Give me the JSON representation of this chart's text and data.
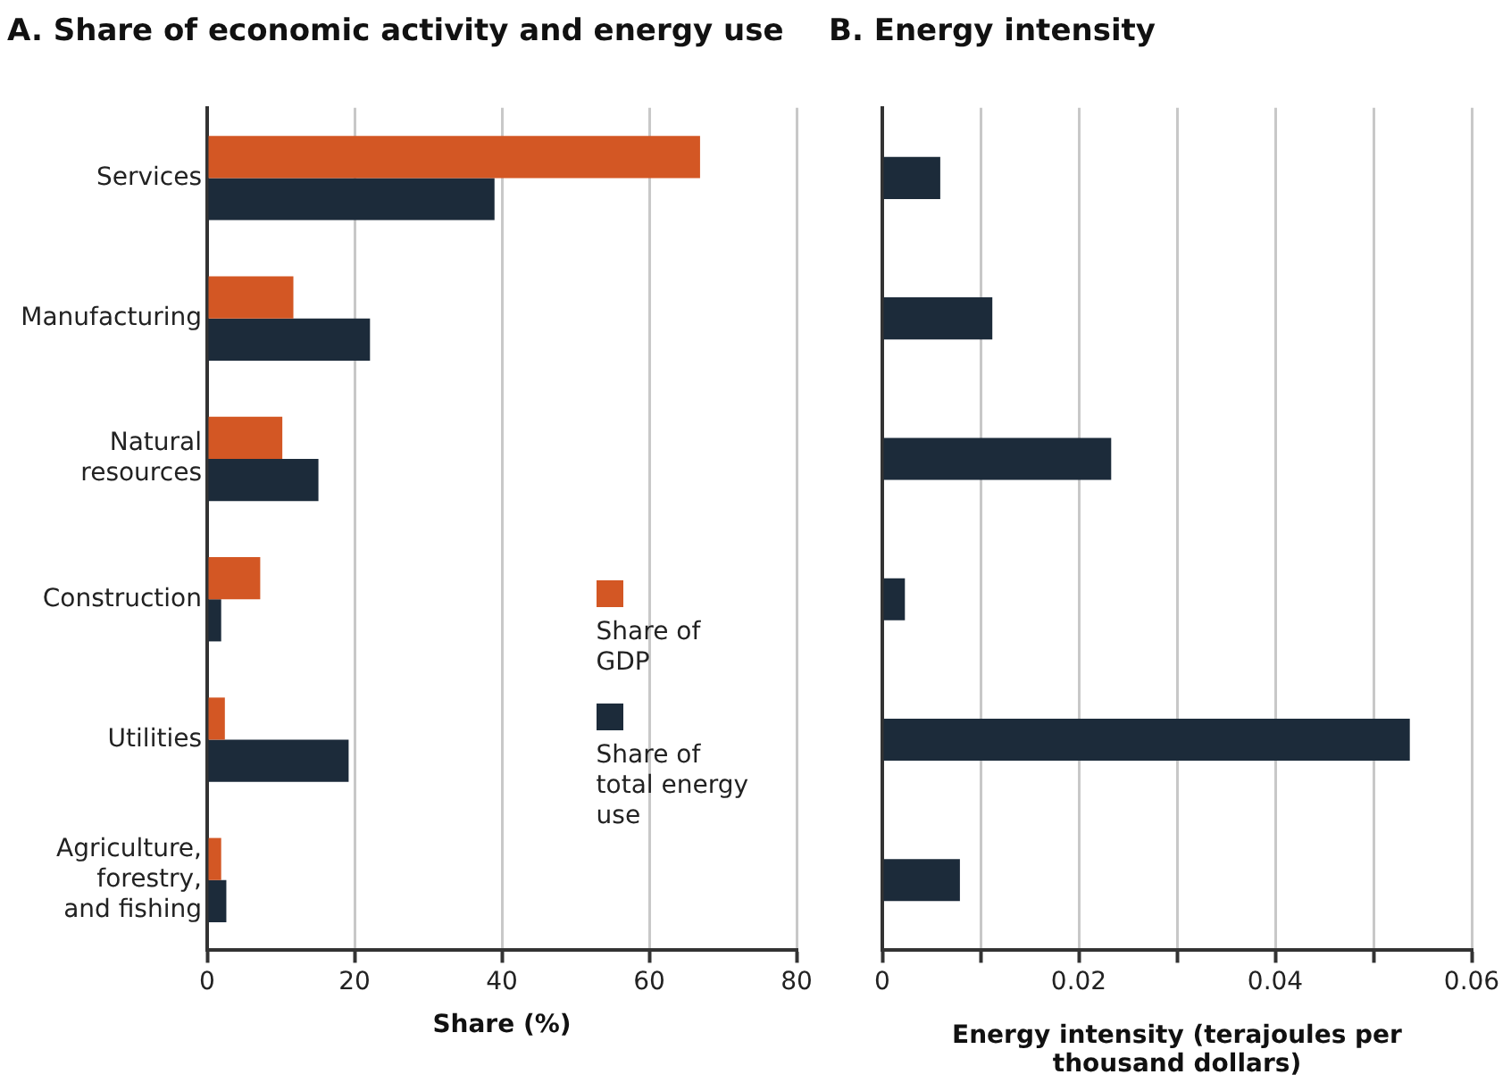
{
  "chart_data": [
    {
      "type": "bar",
      "title": "A. Share of economic activity and energy use",
      "xlabel": "Share (%)",
      "orientation": "horizontal",
      "categories": [
        "Services",
        "Manufacturing",
        "Natural resources",
        "Construction",
        "Utilities",
        "Agriculture, forestry, and fishing"
      ],
      "series": [
        {
          "name": "Share of GDP",
          "color": "#d35724",
          "values": [
            66.9,
            11.7,
            10.2,
            7.2,
            2.4,
            1.9
          ]
        },
        {
          "name": "Share of total energy use",
          "color": "#1c2b3a",
          "values": [
            39.0,
            22.1,
            15.1,
            1.9,
            19.2,
            2.6
          ]
        }
      ],
      "xlim": [
        0,
        80
      ],
      "xticks": [
        0,
        20,
        40,
        60,
        80
      ],
      "grid": "x",
      "legend": "bottom right"
    },
    {
      "type": "bar",
      "title": "B. Energy intensity",
      "xlabel": "Energy intensity (terajoules per thousand dollars)",
      "orientation": "horizontal",
      "categories": [
        null,
        null,
        null,
        null,
        null,
        null
      ],
      "series": [
        {
          "color": "#1c2b3a",
          "values": [
            0.0059,
            0.0112,
            0.0233,
            0.0023,
            0.0537,
            0.0079
          ]
        }
      ],
      "xlim": [
        0,
        0.06
      ],
      "xticks": [
        0,
        {
          "value": 0.01,
          "label": null
        },
        0.02,
        {
          "value": 0.03,
          "label": null
        },
        0.04,
        {
          "value": 0.05,
          "label": null
        },
        0.06
      ],
      "grid": "x",
      "tick_labels": "x"
    }
  ]
}
